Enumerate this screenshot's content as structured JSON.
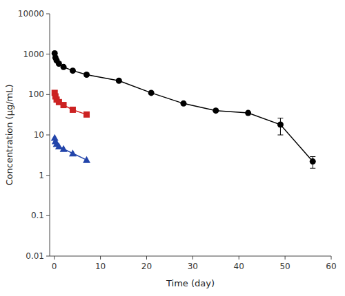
{
  "chart_data": {
    "type": "line",
    "xlabel": "Time (day)",
    "ylabel": "Concentration (μg/mL)",
    "log": "y",
    "grid": false,
    "xlim": [
      -1,
      60
    ],
    "ylim": [
      0.01,
      10000
    ],
    "xticks": [
      0,
      10,
      20,
      30,
      40,
      50,
      60
    ],
    "yticks": [
      0.01,
      0.1,
      1,
      10,
      100,
      1000,
      10000
    ],
    "series": [
      {
        "color": "#000000",
        "marker": "circle",
        "line_style": "solid",
        "x": [
          0.083,
          0.25,
          0.5,
          1,
          2,
          4,
          7,
          14,
          21,
          28,
          35,
          42,
          49,
          56
        ],
        "values": [
          1050,
          820,
          700,
          580,
          480,
          390,
          310,
          220,
          110,
          60,
          40,
          35,
          18,
          2.2
        ],
        "error_low": [
          null,
          null,
          null,
          null,
          null,
          null,
          null,
          null,
          null,
          null,
          null,
          null,
          8,
          0.7
        ],
        "error_high": [
          null,
          null,
          null,
          null,
          null,
          null,
          null,
          null,
          null,
          null,
          null,
          null,
          8,
          0.7
        ]
      },
      {
        "color": "#cc2222",
        "marker": "square",
        "line_style": "solid",
        "x": [
          0.083,
          0.25,
          0.5,
          1,
          2,
          4,
          7
        ],
        "values": [
          110,
          90,
          75,
          65,
          55,
          42,
          32
        ]
      },
      {
        "color": "#2244aa",
        "marker": "triangle",
        "line_style": "solid",
        "x": [
          0.083,
          0.25,
          0.5,
          1,
          2,
          4,
          7
        ],
        "values": [
          8.5,
          7.0,
          6.0,
          5.2,
          4.5,
          3.5,
          2.4
        ]
      }
    ]
  }
}
